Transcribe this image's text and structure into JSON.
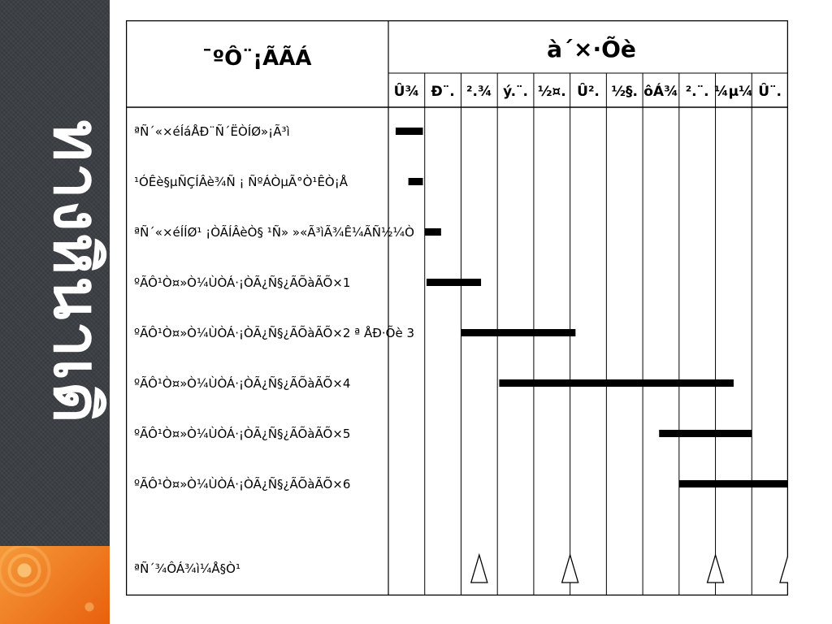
{
  "slide": {
    "side_title": "ทางหินาเดิ",
    "accent_color": "#f07a1a",
    "sidebar_color": "#3a3d42"
  },
  "table": {
    "activity_header": "¯ºÔ¨¡ÃÃÁ",
    "period_header": "à´×͹·Õè",
    "months": [
      "Û¾",
      "Ð¨.",
      "².¾",
      "ý.¨.",
      "½¤.",
      "Û².",
      "½§.",
      "ôÁ¾",
      "².¨.",
      "¼µ¼",
      "Û¨."
    ],
    "rows": [
      {
        "label": "ªÑ´«×éÍáÅÐ¨Ñ´ËÒÍØ»¡Ã³ì",
        "bar": [
          0.2,
          0.95
        ]
      },
      {
        "label": "¹ÓÊè§µÑÇÍÂè¾Ñ ¡ ÑºÁÒµÃ°Ò¹ÊÒ¡Å",
        "bar": [
          0.55,
          0.95
        ]
      },
      {
        "label": "ªÑ´«×éÍÍØ¹ ¡ÒÃÍÂèÒ§ ¹Ñ» »«Ã³ìÃ¾Ê¼ÃÑ½¼Ò",
        "bar": [
          1.0,
          1.45
        ]
      },
      {
        "label": "ºÃÔ¹Ò¤»Ò¼ÙÒÁ·¡ÒÃ¿Ñ§¿ÃÕàÃÕ×1",
        "bar": [
          1.05,
          2.55
        ]
      },
      {
        "label": "ºÃÔ¹Ò¤»Ò¼ÙÒÁ·¡ÒÃ¿Ñ§¿ÃÕàÃÕ×2 ª ÅÐ·Õè 3",
        "bar": [
          2.0,
          5.15
        ]
      },
      {
        "label": "ºÃÔ¹Ò¤»Ò¼ÙÒÁ·¡ÒÃ¿Ñ§¿ÃÕàÃÕ×4",
        "bar": [
          3.05,
          9.5
        ]
      },
      {
        "label": "ºÃÔ¹Ò¤»Ò¼ÙÒÁ·¡ÒÃ¿Ñ§¿ÃÕàÃÕ×5",
        "bar": [
          7.45,
          10.0
        ]
      },
      {
        "label": "ºÃÔ¹Ò¤»Ò¼ÙÒÁ·¡ÒÃ¿Ñ§¿ÃÕàÃÕ×6",
        "bar": [
          8.0,
          11.0
        ]
      },
      {
        "label": "",
        "bar": null
      }
    ],
    "milestone_row": {
      "label": "ªÑ´¾ÔÁ¾ì¼Å§Ò¹",
      "positions": [
        2.5,
        5.0,
        9.0,
        11.0
      ]
    }
  }
}
